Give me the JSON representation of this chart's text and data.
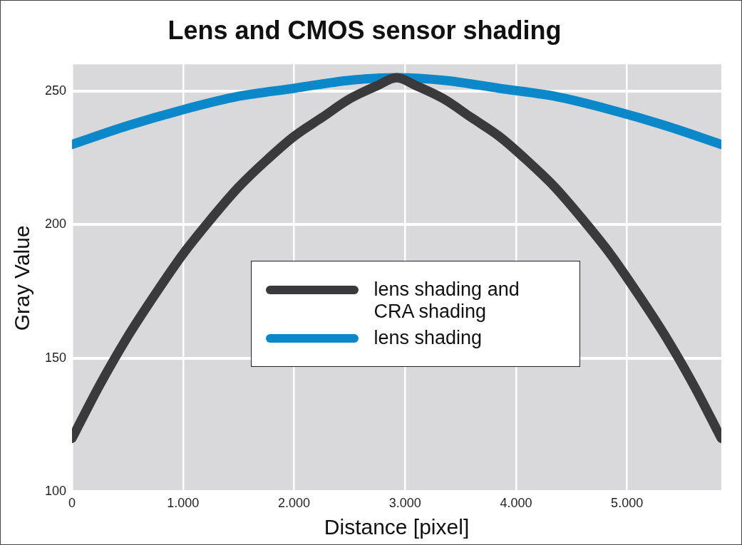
{
  "chart_data": {
    "type": "line",
    "title": "Lens and CMOS sensor shading",
    "xlabel": "Distance [pixel]",
    "ylabel": "Gray Value",
    "xlim": [
      0,
      5850
    ],
    "ylim": [
      100,
      260
    ],
    "xticks": [
      0,
      {
        "value": 1000,
        "label": "1.000"
      },
      {
        "value": 2000,
        "label": "2.000"
      },
      {
        "value": 3000,
        "label": "3.000"
      },
      {
        "value": 4000,
        "label": "4.000"
      },
      {
        "value": 5000,
        "label": "5.000"
      }
    ],
    "yticks": [
      100,
      150,
      200,
      250
    ],
    "grid": true,
    "legend": "center",
    "marker": "none",
    "line_style": "solid",
    "series": [
      {
        "name": "lens shading and CRA shading",
        "color": "#3a3a3c",
        "x": [
          0,
          250,
          500,
          750,
          1000,
          1250,
          1500,
          1750,
          2000,
          2250,
          2500,
          2750,
          2925,
          3100,
          3350,
          3600,
          3850,
          4100,
          4350,
          4600,
          4850,
          5100,
          5350,
          5600,
          5850
        ],
        "values": [
          120,
          140,
          158,
          174,
          189,
          202,
          214,
          224,
          233,
          240,
          247,
          252,
          255,
          252,
          247,
          240,
          233,
          224,
          214,
          202,
          189,
          174,
          158,
          140,
          120
        ]
      },
      {
        "name": "lens shading",
        "color": "#0a88c9",
        "x": [
          0,
          500,
          1000,
          1500,
          2000,
          2500,
          2925,
          3350,
          3850,
          4350,
          4850,
          5350,
          5850
        ],
        "values": [
          230,
          237,
          243,
          248,
          251,
          254,
          255,
          254,
          251,
          248,
          243,
          237,
          230
        ]
      }
    ]
  }
}
